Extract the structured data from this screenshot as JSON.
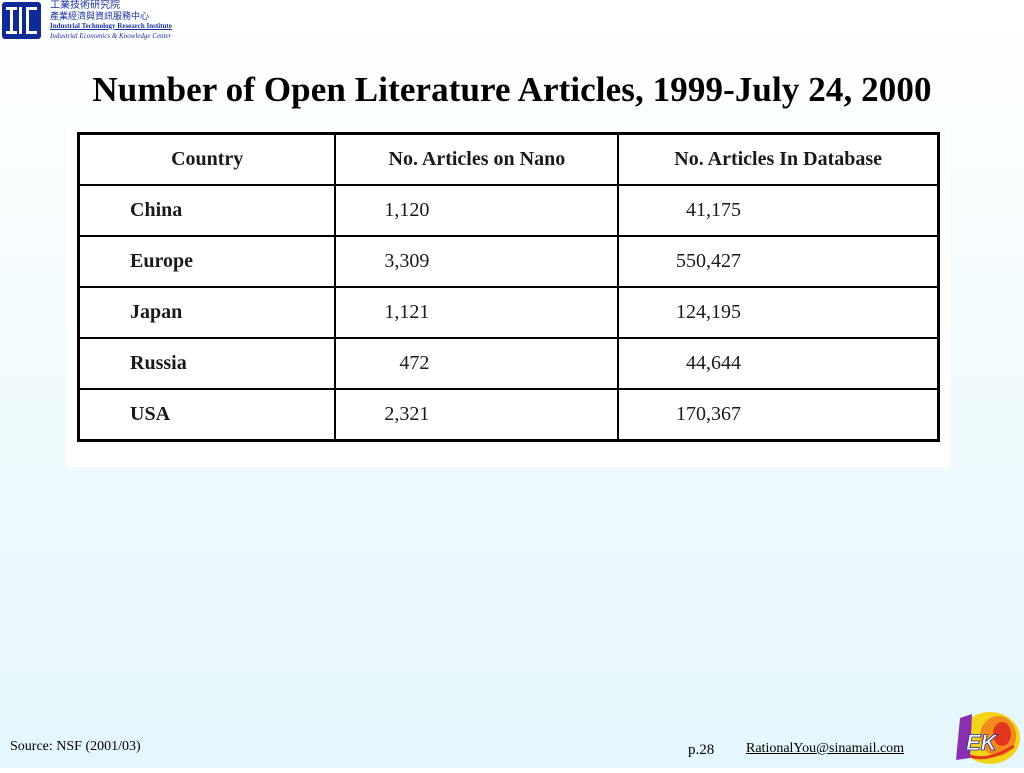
{
  "header": {
    "org_name_zh": "工業技術研究院",
    "org_center_zh": "產業經濟與資訊服務中心",
    "org_name_en": "Industrial Technology Research Institute",
    "org_center_en": "Industrial Economics & Knowledge Center"
  },
  "slide": {
    "title": "Number of Open Literature Articles, 1999-July 24, 2000"
  },
  "table": {
    "headers": [
      "Country",
      "No. Articles on Nano",
      "No. Articles In Database"
    ],
    "rows": [
      [
        "China",
        "1,120",
        "41,175"
      ],
      [
        "Europe",
        "3,309",
        "550,427"
      ],
      [
        "Japan",
        "1,121",
        "124,195"
      ],
      [
        "Russia",
        "472",
        "44,644"
      ],
      [
        "USA",
        "2,321",
        "170,367"
      ]
    ]
  },
  "footer": {
    "source": "Source: NSF (2001/03)",
    "page": "p.28",
    "email": "RationalYou@sinamail.com"
  },
  "colors": {
    "brand_blue": "#0e2a96",
    "background_bottom": "#e4f7fc"
  },
  "icons": {
    "top_logo": "itri-logo-icon",
    "bottom_logo": "iek-logo-icon"
  }
}
